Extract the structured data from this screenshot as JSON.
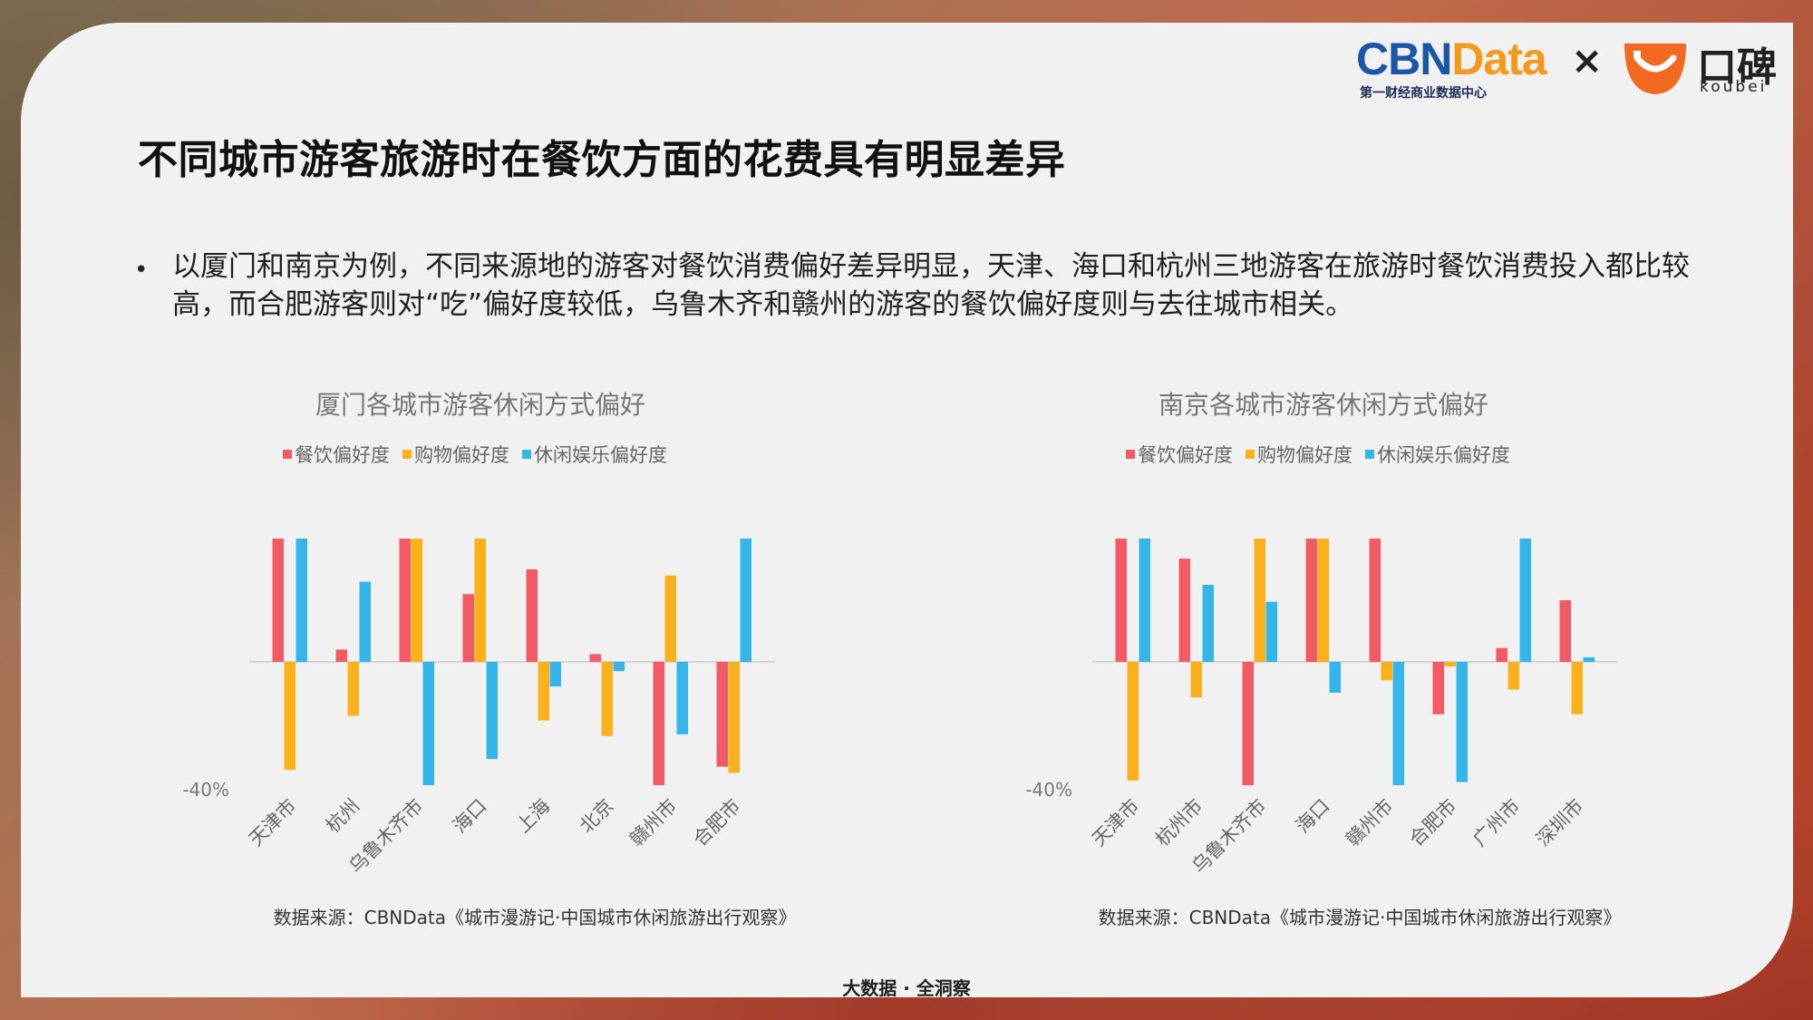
{
  "title": "不同城市游客旅游时在餐饮方面的花费具有明显差异",
  "bullet": "以厦门和南京为例，不同来源地的游客对餐饮消费偏好差异明显，天津、海口和杭州三地游客在旅游时餐饮消费投入都比较高，而合肥游客则对“吃”偏好度较低，乌鲁木齐和赣州的游客的餐饮偏好度则与去往城市相关。",
  "logo": {
    "cbn_part1": "CBN",
    "cbn_part2": "Data",
    "cbn_sub": "第一财经商业数据中心",
    "x": "×",
    "koubei": "口碑",
    "koubei_sub": "koubei"
  },
  "footer": "大数据 · 全洞察",
  "colors": {
    "food": "#f25a66",
    "shopping": "#fbb11c",
    "leisure": "#35b6ea"
  },
  "chart_data": [
    {
      "type": "bar",
      "title": "厦门各城市游客休闲方式偏好",
      "legend": [
        "餐饮偏好度",
        "购物偏好度",
        "休闲娱乐偏好度"
      ],
      "y_tick_label": "-40%",
      "ylim": [
        -40,
        40
      ],
      "categories": [
        "天津市",
        "杭州",
        "乌鲁木齐市",
        "海口",
        "上海",
        "北京",
        "赣州市",
        "合肥市"
      ],
      "series": [
        {
          "name": "餐饮偏好度",
          "values": [
            40,
            4,
            40,
            22,
            30,
            2.5,
            -40,
            -34
          ]
        },
        {
          "name": "购物偏好度",
          "values": [
            -35,
            -17.5,
            40,
            40,
            -19,
            -24,
            28,
            -36
          ]
        },
        {
          "name": "休闲娱乐偏好度",
          "values": [
            40,
            26,
            -40,
            -31.5,
            -8,
            -3,
            -23.5,
            40
          ]
        }
      ],
      "source": "数据来源：CBNData《城市漫游记·中国城市休闲旅游出行观察》"
    },
    {
      "type": "bar",
      "title": "南京各城市游客休闲方式偏好",
      "legend": [
        "餐饮偏好度",
        "购物偏好度",
        "休闲娱乐偏好度"
      ],
      "y_tick_label": "-40%",
      "ylim": [
        -40,
        40
      ],
      "categories": [
        "天津市",
        "杭州市",
        "乌鲁木齐市",
        "海口",
        "赣州市",
        "合肥市",
        "广州市",
        "深圳市"
      ],
      "series": [
        {
          "name": "餐饮偏好度",
          "values": [
            40,
            33.5,
            -40,
            40,
            40,
            -17,
            4.5,
            20
          ]
        },
        {
          "name": "购物偏好度",
          "values": [
            -38.5,
            -11.5,
            40,
            40,
            -6,
            -1.5,
            -9,
            -17
          ]
        },
        {
          "name": "休闲娱乐偏好度",
          "values": [
            40,
            25,
            19.5,
            -10,
            -40,
            -39,
            40,
            1.5
          ]
        }
      ],
      "source": "数据来源：CBNData《城市漫游记·中国城市休闲旅游出行观察》"
    }
  ]
}
